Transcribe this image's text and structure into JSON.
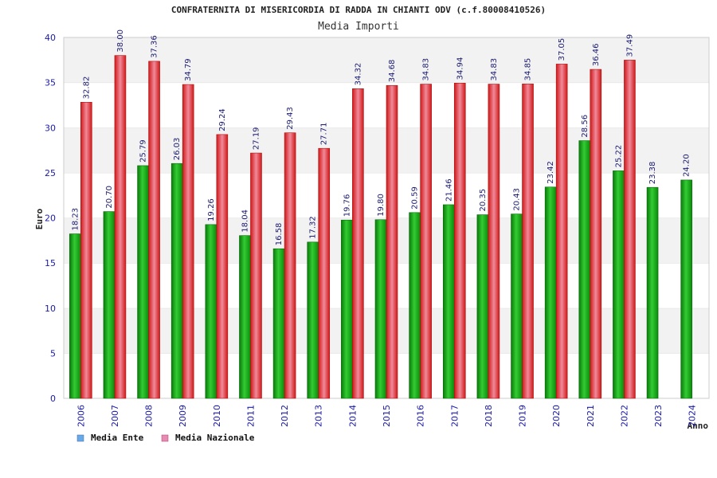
{
  "chart_data": {
    "type": "bar",
    "title": "CONFRATERNITA DI MISERICORDIA DI RADDA IN CHIANTI ODV (c.f.80008410526)",
    "subtitle": "Media Importi",
    "xlabel": "Anno",
    "ylabel": "Euro",
    "ylim": [
      0,
      40
    ],
    "yticks": [
      "0",
      "5",
      "10",
      "15",
      "20",
      "25",
      "30",
      "35",
      "40"
    ],
    "categories": [
      "2006",
      "2007",
      "2008",
      "2009",
      "2010",
      "2011",
      "2012",
      "2013",
      "2014",
      "2015",
      "2016",
      "2017",
      "2018",
      "2019",
      "2020",
      "2021",
      "2022",
      "2023",
      "2024"
    ],
    "series": [
      {
        "name": "Media Ente",
        "color": "#2db82d",
        "legend_color": "#6aa9e9",
        "values": [
          18.23,
          20.7,
          25.79,
          26.03,
          19.26,
          18.04,
          16.58,
          17.32,
          19.76,
          19.8,
          20.59,
          21.46,
          20.35,
          20.43,
          23.42,
          28.56,
          25.22,
          23.38,
          24.2
        ],
        "labels": [
          "18.23",
          "20.70",
          "25.79",
          "26.03",
          "19.26",
          "18.04",
          "16.58",
          "17.32",
          "19.76",
          "19.80",
          "20.59",
          "21.46",
          "20.35",
          "20.43",
          "23.42",
          "28.56",
          "25.22",
          "23.38",
          "24.20"
        ]
      },
      {
        "name": "Media Nazionale",
        "color": "#e23a3a",
        "legend_color": "#e98ab3",
        "values": [
          32.82,
          38.0,
          37.36,
          34.79,
          29.24,
          27.19,
          29.43,
          27.71,
          34.32,
          34.68,
          34.83,
          34.94,
          34.83,
          34.85,
          37.05,
          36.46,
          37.49,
          null,
          null
        ],
        "labels": [
          "32.82",
          "38.00",
          "37.36",
          "34.79",
          "29.24",
          "27.19",
          "29.43",
          "27.71",
          "34.32",
          "34.68",
          "34.83",
          "34.94",
          "34.83",
          "34.85",
          "37.05",
          "36.46",
          "37.49",
          null,
          null
        ]
      }
    ],
    "grid": true,
    "legend": "bottom-left"
  }
}
